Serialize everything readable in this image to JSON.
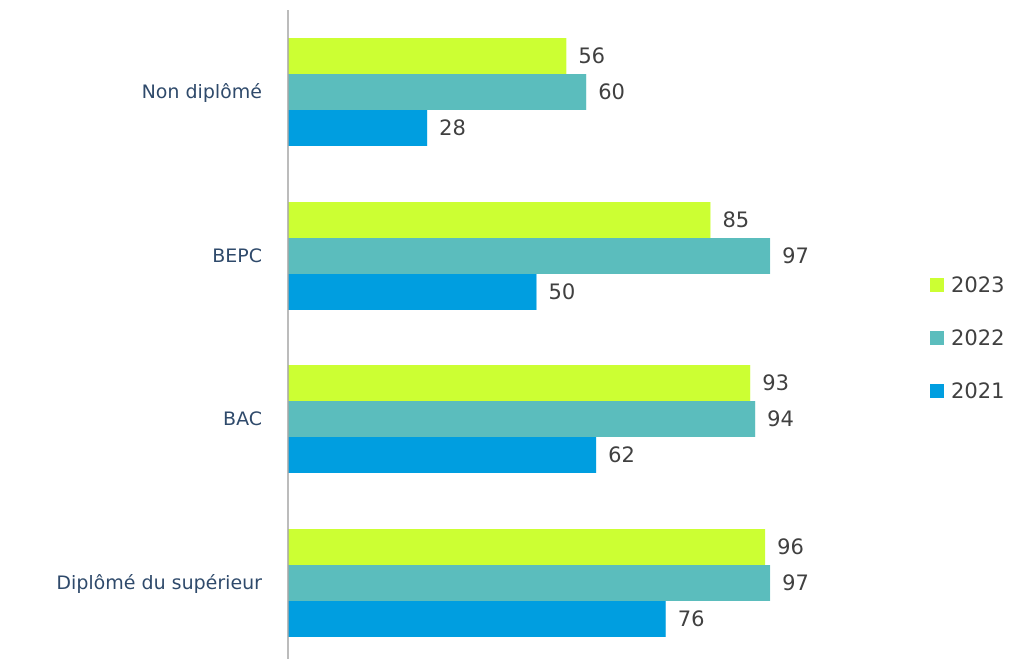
{
  "chart_data": {
    "type": "bar",
    "orientation": "horizontal",
    "categories": [
      "Non diplômé",
      "BEPC",
      "BAC",
      "Diplômé du supérieur"
    ],
    "series": [
      {
        "name": "2023",
        "color": "#ccff33",
        "values": [
          56,
          85,
          93,
          96
        ]
      },
      {
        "name": "2022",
        "color": "#5bbdbd",
        "values": [
          60,
          97,
          94,
          97
        ]
      },
      {
        "name": "2021",
        "color": "#009ee0",
        "values": [
          28,
          50,
          62,
          76
        ]
      }
    ],
    "xlim": [
      0,
      100
    ],
    "legend_position": "right",
    "grid": false,
    "title": "",
    "xlabel": "",
    "ylabel": ""
  }
}
